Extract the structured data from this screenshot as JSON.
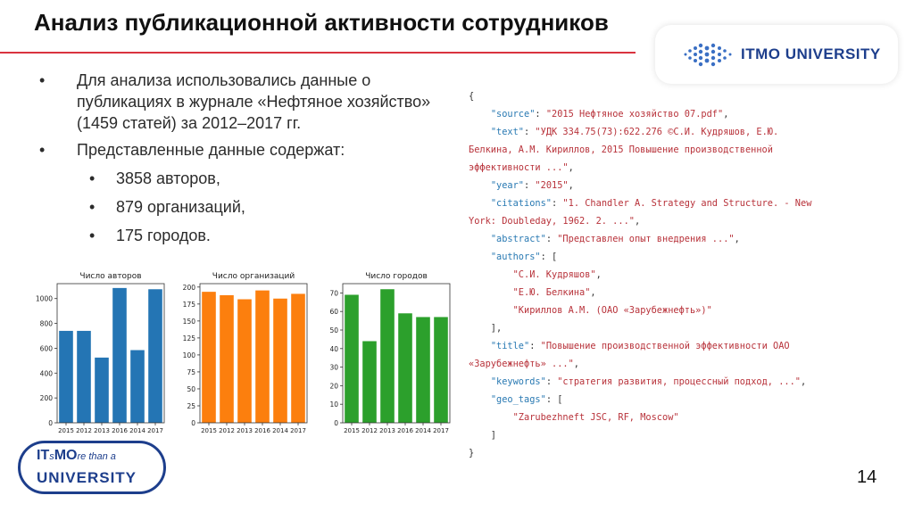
{
  "slide": {
    "title": "Анализ публикационной активности сотрудников",
    "page_number": "14"
  },
  "logo_top": {
    "text": "ITMO UNIVERSITY"
  },
  "logo_bottom": {
    "line1_main": "IT",
    "line1_sub": "s",
    "line1_mo": "MO",
    "line1_italic": "re than a",
    "line2": "UNIVERSITY"
  },
  "bullets": [
    {
      "text": "Для анализа использовались данные о публикациях в журнале «Нефтяное хозяйство» (1459 статей) за 2012–2017 гг."
    },
    {
      "text": "Представленные данные содержат:",
      "sub": [
        "3858 авторов,",
        "879 организаций,",
        "175 городов."
      ]
    }
  ],
  "bullet_glyph": "•",
  "json_lines": [
    [
      [
        "p",
        "{"
      ]
    ],
    [
      [
        "p",
        "    "
      ],
      [
        "k",
        "\"source\""
      ],
      [
        "p",
        ": "
      ],
      [
        "s",
        "\"2015 Нефтяное хозяйство 07.pdf\""
      ],
      [
        "p",
        ","
      ]
    ],
    [
      [
        "p",
        "    "
      ],
      [
        "k",
        "\"text\""
      ],
      [
        "p",
        ": "
      ],
      [
        "s",
        "\"УДК 334.75(73):622.276 ©С.И. Кудряшов, Е.Ю."
      ]
    ],
    [
      [
        "s",
        "Белкина, А.М. Кириллов, 2015 Повышение производственной"
      ]
    ],
    [
      [
        "s",
        "эффективности ...\""
      ],
      [
        "p",
        ","
      ]
    ],
    [
      [
        "p",
        "    "
      ],
      [
        "k",
        "\"year\""
      ],
      [
        "p",
        ": "
      ],
      [
        "s",
        "\"2015\""
      ],
      [
        "p",
        ","
      ]
    ],
    [
      [
        "p",
        "    "
      ],
      [
        "k",
        "\"citations\""
      ],
      [
        "p",
        ": "
      ],
      [
        "s",
        "\"1. Chandler A. Strategy and Structure. - New"
      ]
    ],
    [
      [
        "s",
        "York: Doubleday, 1962. 2. ...\""
      ],
      [
        "p",
        ","
      ]
    ],
    [
      [
        "p",
        "    "
      ],
      [
        "k",
        "\"abstract\""
      ],
      [
        "p",
        ": "
      ],
      [
        "s",
        "\"Представлен опыт внедрения ...\""
      ],
      [
        "p",
        ","
      ]
    ],
    [
      [
        "p",
        "    "
      ],
      [
        "k",
        "\"authors\""
      ],
      [
        "p",
        ": ["
      ]
    ],
    [
      [
        "p",
        "        "
      ],
      [
        "s",
        "\"С.И. Кудряшов\""
      ],
      [
        "p",
        ","
      ]
    ],
    [
      [
        "p",
        "        "
      ],
      [
        "s",
        "\"Е.Ю. Белкина\""
      ],
      [
        "p",
        ","
      ]
    ],
    [
      [
        "p",
        "        "
      ],
      [
        "s",
        "\"Кириллов А.М. (ОАО «Зарубежнефть»)\""
      ]
    ],
    [
      [
        "p",
        "    ],"
      ]
    ],
    [
      [
        "p",
        "    "
      ],
      [
        "k",
        "\"title\""
      ],
      [
        "p",
        ": "
      ],
      [
        "s",
        "\"Повышение производственной эффективности ОАО"
      ]
    ],
    [
      [
        "s",
        "«Зарубежнефть» ...\""
      ],
      [
        "p",
        ","
      ]
    ],
    [
      [
        "p",
        "    "
      ],
      [
        "k",
        "\"keywords\""
      ],
      [
        "p",
        ": "
      ],
      [
        "s",
        "\"стратегия развития, процессный подход, ...\""
      ],
      [
        "p",
        ","
      ]
    ],
    [
      [
        "p",
        "    "
      ],
      [
        "k",
        "\"geo_tags\""
      ],
      [
        "p",
        ": ["
      ]
    ],
    [
      [
        "p",
        "        "
      ],
      [
        "s",
        "\"Zarubezhneft JSC, RF, Moscow\""
      ]
    ],
    [
      [
        "p",
        "    ]"
      ]
    ],
    [
      [
        "p",
        "}"
      ]
    ]
  ],
  "chart_data": [
    {
      "type": "bar",
      "title": "Число авторов",
      "categories": [
        "2015",
        "2012",
        "2013",
        "2016",
        "2014",
        "2017"
      ],
      "values": [
        740,
        740,
        525,
        1085,
        585,
        1075
      ],
      "ylim": [
        0,
        1120
      ],
      "yticks": [
        0,
        200,
        400,
        600,
        800,
        1000
      ],
      "color": "#2475b4"
    },
    {
      "type": "bar",
      "title": "Число организаций",
      "categories": [
        "2015",
        "2012",
        "2013",
        "2016",
        "2014",
        "2017"
      ],
      "values": [
        193,
        188,
        182,
        195,
        183,
        190
      ],
      "ylim": [
        0,
        205
      ],
      "yticks": [
        0,
        25,
        50,
        75,
        100,
        125,
        150,
        175,
        200
      ],
      "color": "#fc7f0e"
    },
    {
      "type": "bar",
      "title": "Число городов",
      "categories": [
        "2015",
        "2012",
        "2013",
        "2016",
        "2014",
        "2017"
      ],
      "values": [
        69,
        44,
        72,
        59,
        57,
        57
      ],
      "ylim": [
        0,
        75
      ],
      "yticks": [
        0,
        10,
        20,
        30,
        40,
        50,
        60,
        70
      ],
      "color": "#2ca02c"
    }
  ]
}
